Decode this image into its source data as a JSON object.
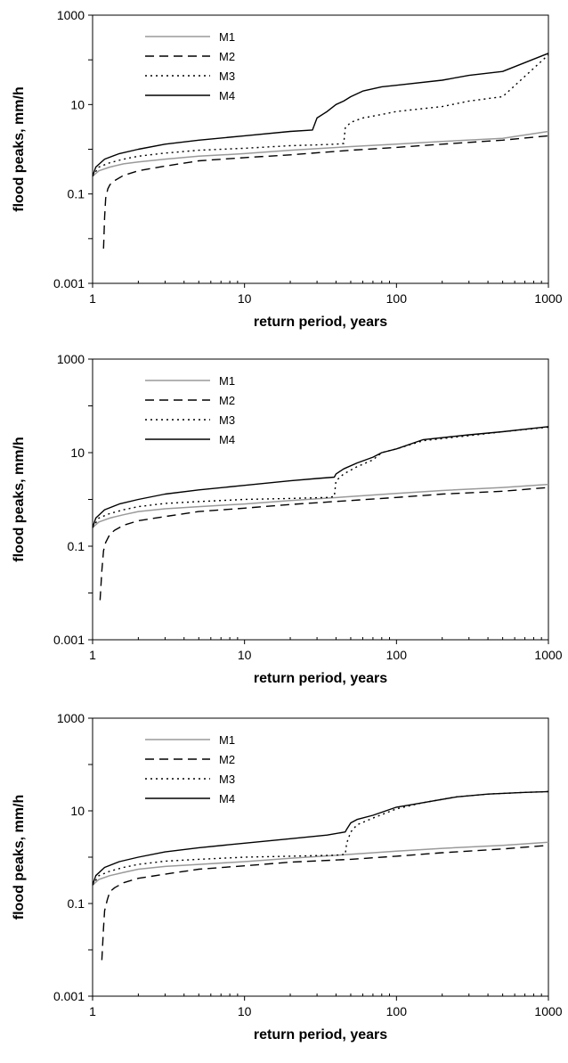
{
  "chart_data": [
    {
      "type": "line",
      "title": "",
      "xlabel": "return period, years",
      "ylabel": "flood peaks, mm/h",
      "xscale": "log",
      "yscale": "log",
      "xlim": [
        1,
        1000
      ],
      "ylim": [
        0.001,
        1000
      ],
      "xticks": [
        "1",
        "10",
        "100",
        "1000"
      ],
      "yticks": [
        "0.001",
        "0.1",
        "10",
        "1000"
      ],
      "legend_position": "top-left",
      "grid": false,
      "series": [
        {
          "name": "M1",
          "style": "solid",
          "color": "#9a9a9a",
          "x": [
            1,
            1.1,
            1.3,
            1.6,
            2,
            3,
            5,
            10,
            20,
            50,
            100,
            200,
            500,
            1000
          ],
          "y": [
            0.25,
            0.33,
            0.4,
            0.47,
            0.52,
            0.6,
            0.7,
            0.8,
            0.95,
            1.15,
            1.3,
            1.5,
            1.75,
            2.5
          ]
        },
        {
          "name": "M2",
          "style": "dashed",
          "color": "#000000",
          "x": [
            1.18,
            1.2,
            1.22,
            1.26,
            1.3,
            1.4,
            1.6,
            2,
            3,
            5,
            10,
            20,
            50,
            100,
            200,
            500,
            1000
          ],
          "y": [
            0.006,
            0.03,
            0.08,
            0.13,
            0.16,
            0.2,
            0.26,
            0.33,
            0.42,
            0.55,
            0.65,
            0.75,
            0.95,
            1.1,
            1.3,
            1.6,
            2.0
          ]
        },
        {
          "name": "M3",
          "style": "dotted",
          "color": "#000000",
          "x": [
            1,
            1.1,
            1.3,
            1.6,
            2,
            3,
            5,
            10,
            20,
            30,
            40,
            45,
            46,
            50,
            60,
            80,
            100,
            200,
            300,
            500,
            1000
          ],
          "y": [
            0.25,
            0.4,
            0.5,
            0.6,
            0.7,
            0.82,
            0.95,
            1.05,
            1.2,
            1.25,
            1.3,
            1.35,
            3.0,
            4.0,
            5.0,
            6.0,
            7.0,
            9.0,
            12.0,
            15.0,
            130.0
          ]
        },
        {
          "name": "M4",
          "style": "solid",
          "color": "#000000",
          "x": [
            1,
            1.05,
            1.2,
            1.5,
            2,
            3,
            5,
            10,
            20,
            28,
            30,
            35,
            40,
            45,
            50,
            60,
            80,
            100,
            200,
            300,
            500,
            1000
          ],
          "y": [
            0.25,
            0.4,
            0.6,
            0.8,
            1.0,
            1.3,
            1.6,
            2.0,
            2.5,
            2.7,
            5.0,
            7.0,
            10.0,
            12.0,
            15.0,
            20.0,
            25.0,
            27.0,
            35.0,
            45.0,
            55.0,
            140.0
          ]
        }
      ]
    },
    {
      "type": "line",
      "title": "",
      "xlabel": "return period, years",
      "ylabel": "flood peaks, mm/h",
      "xscale": "log",
      "yscale": "log",
      "xlim": [
        1,
        1000
      ],
      "ylim": [
        0.001,
        1000
      ],
      "xticks": [
        "1",
        "10",
        "100",
        "1000"
      ],
      "yticks": [
        "0.001",
        "0.1",
        "10",
        "1000"
      ],
      "legend_position": "top-left",
      "grid": false,
      "series": [
        {
          "name": "M1",
          "style": "solid",
          "color": "#9a9a9a",
          "x": [
            1,
            1.1,
            1.3,
            1.6,
            2,
            3,
            5,
            10,
            20,
            50,
            100,
            200,
            500,
            1000
          ],
          "y": [
            0.25,
            0.33,
            0.4,
            0.47,
            0.55,
            0.63,
            0.7,
            0.8,
            0.95,
            1.15,
            1.35,
            1.55,
            1.8,
            2.1
          ]
        },
        {
          "name": "M2",
          "style": "dashed",
          "color": "#000000",
          "x": [
            1.12,
            1.15,
            1.18,
            1.22,
            1.3,
            1.4,
            1.6,
            2,
            3,
            5,
            10,
            20,
            50,
            100,
            200,
            500,
            1000
          ],
          "y": [
            0.007,
            0.03,
            0.08,
            0.12,
            0.18,
            0.22,
            0.28,
            0.35,
            0.43,
            0.55,
            0.65,
            0.78,
            0.95,
            1.1,
            1.3,
            1.5,
            1.8
          ]
        },
        {
          "name": "M3",
          "style": "dotted",
          "color": "#000000",
          "x": [
            1,
            1.1,
            1.3,
            1.6,
            2,
            3,
            5,
            10,
            20,
            35,
            39,
            40,
            45,
            55,
            70,
            80,
            100,
            150,
            300,
            500,
            1000
          ],
          "y": [
            0.25,
            0.4,
            0.5,
            0.6,
            0.7,
            0.82,
            0.9,
            1.0,
            1.05,
            1.1,
            1.15,
            2.5,
            3.5,
            5.0,
            7.0,
            10.0,
            12.0,
            18.0,
            23.0,
            28.0,
            35.0
          ]
        },
        {
          "name": "M4",
          "style": "solid",
          "color": "#000000",
          "x": [
            1,
            1.05,
            1.2,
            1.5,
            2,
            3,
            5,
            10,
            20,
            30,
            39,
            40,
            45,
            55,
            70,
            80,
            100,
            150,
            300,
            500,
            1000
          ],
          "y": [
            0.25,
            0.4,
            0.6,
            0.8,
            1.0,
            1.3,
            1.6,
            2.0,
            2.5,
            2.8,
            3.0,
            3.5,
            4.5,
            6.0,
            8.0,
            10.0,
            12.0,
            19.0,
            24.0,
            28.0,
            36.0
          ]
        }
      ]
    },
    {
      "type": "line",
      "title": "",
      "xlabel": "return period, years",
      "ylabel": "flood peaks, mm/h",
      "xscale": "log",
      "yscale": "log",
      "xlim": [
        1,
        1000
      ],
      "ylim": [
        0.001,
        1000
      ],
      "xticks": [
        "1",
        "10",
        "100",
        "1000"
      ],
      "yticks": [
        "0.001",
        "0.1",
        "10",
        "1000"
      ],
      "legend_position": "top-left",
      "grid": false,
      "series": [
        {
          "name": "M1",
          "style": "solid",
          "color": "#9a9a9a",
          "x": [
            1,
            1.1,
            1.3,
            1.6,
            2,
            3,
            5,
            10,
            20,
            50,
            100,
            200,
            500,
            1000
          ],
          "y": [
            0.25,
            0.33,
            0.4,
            0.47,
            0.55,
            0.63,
            0.7,
            0.8,
            0.95,
            1.15,
            1.35,
            1.55,
            1.8,
            2.1
          ]
        },
        {
          "name": "M2",
          "style": "dashed",
          "color": "#000000",
          "x": [
            1.15,
            1.18,
            1.2,
            1.25,
            1.3,
            1.4,
            1.6,
            2,
            3,
            5,
            10,
            20,
            50,
            100,
            200,
            500,
            1000
          ],
          "y": [
            0.006,
            0.03,
            0.07,
            0.12,
            0.18,
            0.22,
            0.28,
            0.35,
            0.43,
            0.55,
            0.65,
            0.78,
            0.9,
            1.05,
            1.25,
            1.5,
            1.8
          ]
        },
        {
          "name": "M3",
          "style": "dotted",
          "color": "#000000",
          "x": [
            1,
            1.1,
            1.3,
            1.6,
            2,
            3,
            5,
            10,
            20,
            40,
            46,
            47,
            50,
            55,
            70,
            100,
            150,
            250,
            400,
            700,
            1000
          ],
          "y": [
            0.25,
            0.4,
            0.5,
            0.6,
            0.7,
            0.82,
            0.9,
            1.0,
            1.05,
            1.1,
            1.15,
            2.0,
            3.5,
            5.0,
            7.0,
            11.0,
            15.0,
            20.0,
            23.0,
            25.0,
            26.0
          ]
        },
        {
          "name": "M4",
          "style": "solid",
          "color": "#000000",
          "x": [
            1,
            1.05,
            1.2,
            1.5,
            2,
            3,
            5,
            10,
            20,
            35,
            46,
            47,
            50,
            55,
            70,
            100,
            150,
            250,
            400,
            700,
            1000
          ],
          "y": [
            0.25,
            0.4,
            0.6,
            0.8,
            1.0,
            1.3,
            1.6,
            2.0,
            2.5,
            3.0,
            3.5,
            4.0,
            5.5,
            6.5,
            8.0,
            12.0,
            15.0,
            20.0,
            23.0,
            25.0,
            26.0
          ]
        }
      ]
    }
  ]
}
